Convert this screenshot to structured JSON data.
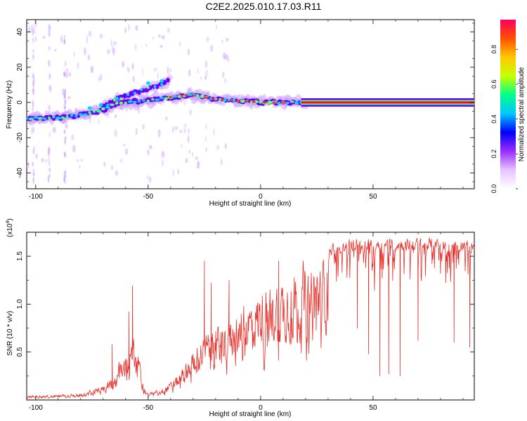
{
  "title": "C2E2.2025.010.17.03.R11",
  "chart_data": [
    {
      "type": "heatmap",
      "xlabel": "Height of straight line (km)",
      "ylabel": "Frequency (Hz)",
      "xlim": [
        -104,
        95
      ],
      "ylim": [
        -49,
        47
      ],
      "xticks": [
        -100,
        -50,
        0,
        50
      ],
      "yticks": [
        -40,
        -20,
        0,
        20,
        40
      ],
      "xtick_labels": [
        "-100",
        "-50",
        "0",
        "50"
      ],
      "ytick_labels": [
        "-40",
        "-20",
        "0",
        "20",
        "40"
      ],
      "ridge": {
        "x": [
          -104,
          -100,
          -95,
          -90,
          -85,
          -80,
          -75,
          -70,
          -65,
          -60,
          -55,
          -50,
          -45,
          -40,
          -35,
          -30,
          -25,
          -20,
          -15,
          -10,
          -5,
          0,
          5,
          10,
          15,
          20,
          30,
          50,
          70,
          95
        ],
        "y": [
          -9,
          -9,
          -9,
          -8.5,
          -8,
          -7,
          -6,
          -4,
          -1,
          0,
          0.5,
          1,
          2,
          3,
          4,
          4,
          3,
          2,
          1.5,
          1,
          0.5,
          0,
          0,
          0,
          0.2,
          0,
          0,
          0,
          0,
          0
        ]
      },
      "branch": {
        "x": [
          -70,
          -65,
          -60,
          -55,
          -50,
          -45,
          -40
        ],
        "y": [
          -2,
          1,
          4,
          6,
          8,
          10,
          13
        ]
      },
      "colorbar": {
        "label": "Normalized spectral amplitude",
        "range": [
          0,
          0.97
        ],
        "ticks": [
          0,
          0.2,
          0.4,
          0.6,
          0.8
        ],
        "tick_labels": [
          "0.0",
          "0.2",
          "0.4",
          "0.6",
          "0.8"
        ],
        "colormap": [
          "#ffffff",
          "#e6c4ff",
          "#9a2cff",
          "#0000ff",
          "#00c8ff",
          "#00ff88",
          "#c8ff00",
          "#ffc800",
          "#ff5000",
          "#ff0060"
        ]
      }
    },
    {
      "type": "line",
      "xlabel": "Height of straight line (km)",
      "ylabel": "SNR (10 * v/v)",
      "y_multiplier": "(x10",
      "y_multiplier_exp": "4",
      "y_multiplier_close": ")",
      "xlim": [
        -104,
        95
      ],
      "ylim": [
        0,
        1.75
      ],
      "xticks": [
        -100,
        -50,
        0,
        50
      ],
      "yticks": [
        0.5,
        1.0,
        1.5
      ],
      "xtick_labels": [
        "-100",
        "-50",
        "0",
        "50"
      ],
      "ytick_labels": [
        "0.5",
        "1.0",
        "1.5"
      ],
      "series": [
        {
          "name": "SNR",
          "color": "#e8302a",
          "envelope_x": [
            -104,
            -90,
            -80,
            -70,
            -65,
            -60,
            -57,
            -55,
            -52,
            -50,
            -45,
            -40,
            -35,
            -30,
            -25,
            -20,
            -15,
            -10,
            -5,
            0,
            5,
            10,
            15,
            20,
            25,
            30,
            40,
            50,
            60,
            70,
            80,
            90,
            95
          ],
          "envelope_y": [
            0.05,
            0.06,
            0.08,
            0.15,
            0.35,
            0.55,
            0.75,
            0.6,
            0.15,
            0.08,
            0.12,
            0.2,
            0.35,
            0.6,
            0.75,
            0.85,
            0.95,
            1.05,
            1.15,
            1.25,
            1.32,
            1.4,
            1.48,
            1.55,
            1.62,
            1.66,
            1.7,
            1.71,
            1.71,
            1.71,
            1.71,
            1.71,
            1.7
          ],
          "peaks": [
            {
              "x": -57,
              "y": 1.19
            },
            {
              "x": -58.5,
              "y": 0.92
            },
            {
              "x": -66,
              "y": 0.58
            },
            {
              "x": -25,
              "y": 1.45
            },
            {
              "x": -22,
              "y": 1.22
            },
            {
              "x": -14,
              "y": 1.25
            },
            {
              "x": 8,
              "y": 1.45
            }
          ],
          "dips": [
            {
              "x": 48,
              "y": 0.48
            },
            {
              "x": 53,
              "y": 0.25
            },
            {
              "x": 57,
              "y": 0.27
            },
            {
              "x": 62,
              "y": 0.25
            },
            {
              "x": 43,
              "y": 0.75
            },
            {
              "x": 70,
              "y": 0.62
            },
            {
              "x": 86,
              "y": 0.6
            },
            {
              "x": 93,
              "y": 0.55
            }
          ]
        }
      ]
    }
  ]
}
